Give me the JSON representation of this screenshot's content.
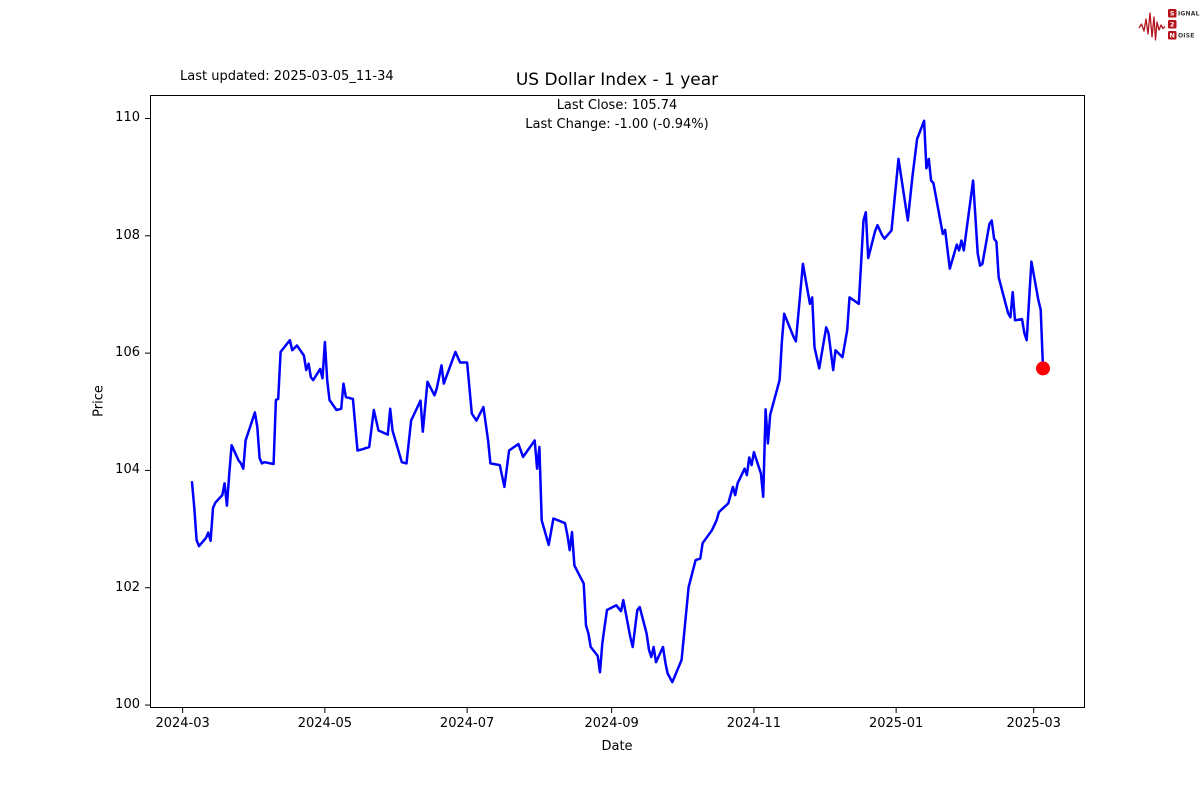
{
  "header": {
    "last_updated": "Last updated: 2025-03-05_11-34"
  },
  "logo": {
    "line1_lead": "S",
    "line1_rest": "IGNAL",
    "line2": "2",
    "line3_lead": "N",
    "line3_rest": "OISE",
    "accent_color": "#b5121b",
    "text_color": "#3a3a3a"
  },
  "chart_data": {
    "type": "line",
    "title": "US Dollar Index - 1 year",
    "subtitle_lines": [
      "Last Close: 105.74",
      "Last Change: -1.00 (-0.94%)"
    ],
    "xlabel": "Date",
    "ylabel": "Price",
    "x_ticks": [
      "2024-03",
      "2024-05",
      "2024-07",
      "2024-09",
      "2024-11",
      "2025-01",
      "2025-03"
    ],
    "y_ticks": [
      100,
      102,
      104,
      106,
      108,
      110
    ],
    "xlim": [
      "2024-02-16",
      "2025-03-23"
    ],
    "ylim": [
      99.95,
      110.4
    ],
    "grid": false,
    "background": "#ffffff",
    "line_color": "#0000ff",
    "end_marker": {
      "date": "2025-03-05",
      "value": 105.74,
      "color": "#ff0000"
    },
    "series": [
      {
        "name": "US Dollar Index",
        "points": [
          [
            "2024-03-05",
            103.8
          ],
          [
            "2024-03-06",
            103.36
          ],
          [
            "2024-03-07",
            102.81
          ],
          [
            "2024-03-08",
            102.71
          ],
          [
            "2024-03-11",
            102.85
          ],
          [
            "2024-03-12",
            102.94
          ],
          [
            "2024-03-13",
            102.8
          ],
          [
            "2024-03-14",
            103.36
          ],
          [
            "2024-03-15",
            103.45
          ],
          [
            "2024-03-18",
            103.58
          ],
          [
            "2024-03-19",
            103.78
          ],
          [
            "2024-03-20",
            103.4
          ],
          [
            "2024-03-21",
            103.95
          ],
          [
            "2024-03-22",
            104.43
          ],
          [
            "2024-03-25",
            104.17
          ],
          [
            "2024-03-26",
            104.12
          ],
          [
            "2024-03-27",
            104.03
          ],
          [
            "2024-03-28",
            104.51
          ],
          [
            "2024-04-01",
            104.99
          ],
          [
            "2024-04-02",
            104.74
          ],
          [
            "2024-04-03",
            104.21
          ],
          [
            "2024-04-04",
            104.12
          ],
          [
            "2024-04-05",
            104.14
          ],
          [
            "2024-04-09",
            104.11
          ],
          [
            "2024-04-10",
            105.2
          ],
          [
            "2024-04-11",
            105.22
          ],
          [
            "2024-04-12",
            106.02
          ],
          [
            "2024-04-16",
            106.22
          ],
          [
            "2024-04-17",
            106.05
          ],
          [
            "2024-04-19",
            106.13
          ],
          [
            "2024-04-22",
            105.96
          ],
          [
            "2024-04-23",
            105.71
          ],
          [
            "2024-04-24",
            105.82
          ],
          [
            "2024-04-25",
            105.59
          ],
          [
            "2024-04-26",
            105.54
          ],
          [
            "2024-04-29",
            105.73
          ],
          [
            "2024-04-30",
            105.57
          ],
          [
            "2024-05-01",
            106.19
          ],
          [
            "2024-05-02",
            105.54
          ],
          [
            "2024-05-03",
            105.2
          ],
          [
            "2024-05-06",
            105.03
          ],
          [
            "2024-05-08",
            105.05
          ],
          [
            "2024-05-09",
            105.48
          ],
          [
            "2024-05-10",
            105.25
          ],
          [
            "2024-05-13",
            105.22
          ],
          [
            "2024-05-15",
            104.34
          ],
          [
            "2024-05-17",
            104.36
          ],
          [
            "2024-05-20",
            104.4
          ],
          [
            "2024-05-22",
            105.03
          ],
          [
            "2024-05-24",
            104.68
          ],
          [
            "2024-05-28",
            104.61
          ],
          [
            "2024-05-29",
            105.05
          ],
          [
            "2024-05-30",
            104.68
          ],
          [
            "2024-06-03",
            104.14
          ],
          [
            "2024-06-05",
            104.12
          ],
          [
            "2024-06-07",
            104.85
          ],
          [
            "2024-06-11",
            105.19
          ],
          [
            "2024-06-12",
            104.66
          ],
          [
            "2024-06-14",
            105.51
          ],
          [
            "2024-06-17",
            105.28
          ],
          [
            "2024-06-18",
            105.4
          ],
          [
            "2024-06-20",
            105.79
          ],
          [
            "2024-06-21",
            105.48
          ],
          [
            "2024-06-26",
            106.02
          ],
          [
            "2024-06-28",
            105.84
          ],
          [
            "2024-07-01",
            105.84
          ],
          [
            "2024-07-03",
            104.97
          ],
          [
            "2024-07-05",
            104.85
          ],
          [
            "2024-07-08",
            105.08
          ],
          [
            "2024-07-10",
            104.51
          ],
          [
            "2024-07-11",
            104.12
          ],
          [
            "2024-07-15",
            104.09
          ],
          [
            "2024-07-17",
            103.72
          ],
          [
            "2024-07-19",
            104.34
          ],
          [
            "2024-07-23",
            104.45
          ],
          [
            "2024-07-25",
            104.23
          ],
          [
            "2024-07-30",
            104.51
          ],
          [
            "2024-07-31",
            104.03
          ],
          [
            "2024-08-01",
            104.4
          ],
          [
            "2024-08-02",
            103.15
          ],
          [
            "2024-08-05",
            102.73
          ],
          [
            "2024-08-07",
            103.18
          ],
          [
            "2024-08-09",
            103.15
          ],
          [
            "2024-08-12",
            103.1
          ],
          [
            "2024-08-13",
            102.9
          ],
          [
            "2024-08-14",
            102.64
          ],
          [
            "2024-08-15",
            102.95
          ],
          [
            "2024-08-16",
            102.38
          ],
          [
            "2024-08-20",
            102.07
          ],
          [
            "2024-08-21",
            101.36
          ],
          [
            "2024-08-22",
            101.22
          ],
          [
            "2024-08-23",
            100.99
          ],
          [
            "2024-08-26",
            100.84
          ],
          [
            "2024-08-27",
            100.56
          ],
          [
            "2024-08-28",
            101.05
          ],
          [
            "2024-08-29",
            101.35
          ],
          [
            "2024-08-30",
            101.62
          ],
          [
            "2024-09-03",
            101.7
          ],
          [
            "2024-09-05",
            101.6
          ],
          [
            "2024-09-06",
            101.79
          ],
          [
            "2024-09-09",
            101.16
          ],
          [
            "2024-09-10",
            100.99
          ],
          [
            "2024-09-12",
            101.62
          ],
          [
            "2024-09-13",
            101.67
          ],
          [
            "2024-09-16",
            101.22
          ],
          [
            "2024-09-17",
            100.94
          ],
          [
            "2024-09-18",
            100.82
          ],
          [
            "2024-09-19",
            100.99
          ],
          [
            "2024-09-20",
            100.73
          ],
          [
            "2024-09-23",
            100.99
          ],
          [
            "2024-09-24",
            100.73
          ],
          [
            "2024-09-25",
            100.54
          ],
          [
            "2024-09-27",
            100.39
          ],
          [
            "2024-10-01",
            100.77
          ],
          [
            "2024-10-04",
            102.01
          ],
          [
            "2024-10-07",
            102.47
          ],
          [
            "2024-10-09",
            102.5
          ],
          [
            "2024-10-10",
            102.76
          ],
          [
            "2024-10-14",
            102.98
          ],
          [
            "2024-10-16",
            103.15
          ],
          [
            "2024-10-17",
            103.29
          ],
          [
            "2024-10-21",
            103.44
          ],
          [
            "2024-10-23",
            103.72
          ],
          [
            "2024-10-24",
            103.58
          ],
          [
            "2024-10-25",
            103.78
          ],
          [
            "2024-10-28",
            104.03
          ],
          [
            "2024-10-29",
            103.92
          ],
          [
            "2024-10-30",
            104.22
          ],
          [
            "2024-10-31",
            104.09
          ],
          [
            "2024-11-01",
            104.31
          ],
          [
            "2024-11-04",
            103.95
          ],
          [
            "2024-11-05",
            103.55
          ],
          [
            "2024-11-06",
            105.04
          ],
          [
            "2024-11-07",
            104.46
          ],
          [
            "2024-11-08",
            104.95
          ],
          [
            "2024-11-12",
            105.54
          ],
          [
            "2024-11-13",
            106.2
          ],
          [
            "2024-11-14",
            106.67
          ],
          [
            "2024-11-18",
            106.28
          ],
          [
            "2024-11-19",
            106.2
          ],
          [
            "2024-11-22",
            107.52
          ],
          [
            "2024-11-25",
            106.84
          ],
          [
            "2024-11-26",
            106.95
          ],
          [
            "2024-11-27",
            106.1
          ],
          [
            "2024-11-29",
            105.74
          ],
          [
            "2024-12-02",
            106.44
          ],
          [
            "2024-12-03",
            106.34
          ],
          [
            "2024-12-05",
            105.71
          ],
          [
            "2024-12-06",
            106.05
          ],
          [
            "2024-12-09",
            105.93
          ],
          [
            "2024-12-11",
            106.39
          ],
          [
            "2024-12-12",
            106.95
          ],
          [
            "2024-12-16",
            106.84
          ],
          [
            "2024-12-18",
            108.26
          ],
          [
            "2024-12-19",
            108.4
          ],
          [
            "2024-12-20",
            107.62
          ],
          [
            "2024-12-23",
            108.08
          ],
          [
            "2024-12-24",
            108.18
          ],
          [
            "2024-12-26",
            108.01
          ],
          [
            "2024-12-27",
            107.95
          ],
          [
            "2024-12-30",
            108.09
          ],
          [
            "2024-12-31",
            108.49
          ],
          [
            "2025-01-02",
            109.31
          ],
          [
            "2025-01-06",
            108.26
          ],
          [
            "2025-01-08",
            109.02
          ],
          [
            "2025-01-10",
            109.65
          ],
          [
            "2025-01-13",
            109.96
          ],
          [
            "2025-01-14",
            109.15
          ],
          [
            "2025-01-15",
            109.31
          ],
          [
            "2025-01-16",
            108.94
          ],
          [
            "2025-01-17",
            108.9
          ],
          [
            "2025-01-21",
            108.03
          ],
          [
            "2025-01-22",
            108.1
          ],
          [
            "2025-01-24",
            107.44
          ],
          [
            "2025-01-27",
            107.85
          ],
          [
            "2025-01-28",
            107.75
          ],
          [
            "2025-01-29",
            107.92
          ],
          [
            "2025-01-30",
            107.75
          ],
          [
            "2025-02-03",
            108.94
          ],
          [
            "2025-02-05",
            107.7
          ],
          [
            "2025-02-06",
            107.49
          ],
          [
            "2025-02-07",
            107.52
          ],
          [
            "2025-02-10",
            108.2
          ],
          [
            "2025-02-11",
            108.26
          ],
          [
            "2025-02-12",
            107.95
          ],
          [
            "2025-02-13",
            107.9
          ],
          [
            "2025-02-14",
            107.29
          ],
          [
            "2025-02-18",
            106.68
          ],
          [
            "2025-02-19",
            106.61
          ],
          [
            "2025-02-20",
            107.04
          ],
          [
            "2025-02-21",
            106.56
          ],
          [
            "2025-02-24",
            106.58
          ],
          [
            "2025-02-25",
            106.34
          ],
          [
            "2025-02-26",
            106.22
          ],
          [
            "2025-02-28",
            107.56
          ],
          [
            "2025-03-03",
            106.9
          ],
          [
            "2025-03-04",
            106.74
          ],
          [
            "2025-03-05",
            105.74
          ]
        ]
      }
    ]
  }
}
